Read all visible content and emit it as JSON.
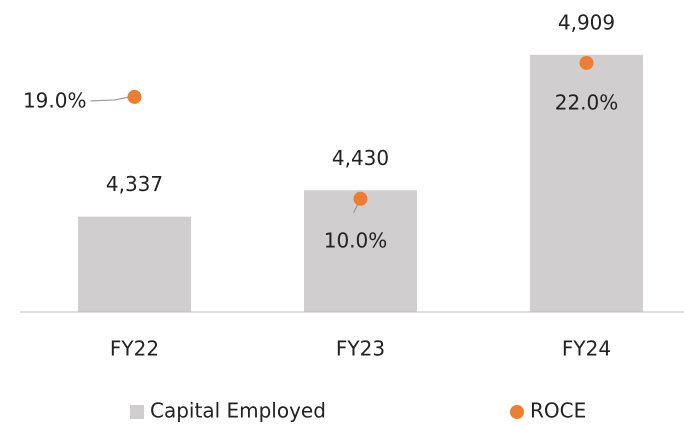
{
  "chart_data": {
    "type": "bar",
    "categories": [
      "FY22",
      "FY23",
      "FY24"
    ],
    "series": [
      {
        "name": "Capital Employed",
        "type": "bar",
        "color": "#d0cece",
        "values": [
          4337,
          4430,
          4909
        ],
        "value_labels": [
          "4,337",
          "4,430",
          "4,909"
        ]
      },
      {
        "name": "ROCE",
        "type": "scatter",
        "axis": "y2",
        "color": "#ed7d31",
        "values": [
          19,
          10,
          22
        ],
        "value_labels": [
          "19.0%",
          "10.0%",
          "22.0%"
        ]
      }
    ],
    "ylim": [
      4000,
      5000
    ],
    "y2lim": [
      0,
      25
    ],
    "grid": false
  }
}
